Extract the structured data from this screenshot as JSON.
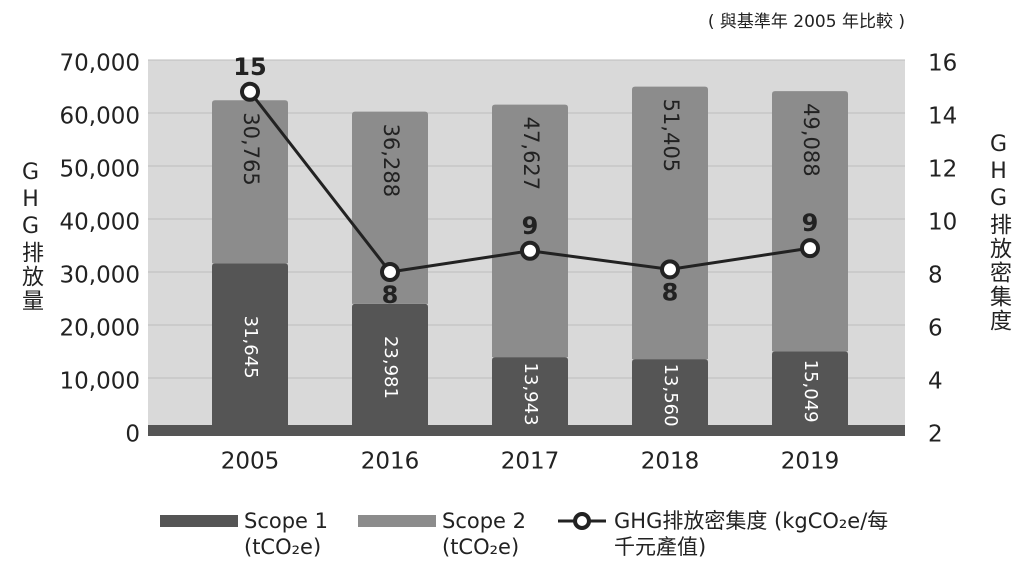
{
  "chart_data": {
    "type": "stacked-bar-line",
    "note": "( 與基準年 2005 年比較 )",
    "ylabel": "GHG排放量",
    "y2label": "GHG排放密集度",
    "categories": [
      "2005",
      "2016",
      "2017",
      "2018",
      "2019"
    ],
    "series": [
      {
        "name": "Scope 1 (tCO₂e)",
        "color": "#555555",
        "values": [
          31645,
          23981,
          13943,
          13560,
          15049
        ],
        "value_labels": [
          "31,645",
          "23,981",
          "13,943",
          "13,560",
          "15,049"
        ]
      },
      {
        "name": "Scope 2 (tCO₂e)",
        "color": "#8c8c8c",
        "values": [
          30765,
          36288,
          47627,
          51405,
          49088
        ],
        "value_labels": [
          "30,765",
          "36,288",
          "47,627",
          "51,405",
          "49,088"
        ]
      },
      {
        "name": "GHG排放密集度 (kgCO₂e/每千元產值)",
        "color": "#222222",
        "axis": "y2",
        "values": [
          14.8,
          8.0,
          8.8,
          8.1,
          8.9
        ],
        "value_labels": [
          "15",
          "8",
          "9",
          "8",
          "9"
        ]
      }
    ],
    "ylim": [
      0,
      70000
    ],
    "yticks": [
      {
        "value": 0,
        "label": "0"
      },
      {
        "value": 10000,
        "label": "10,000"
      },
      {
        "value": 20000,
        "label": "20,000"
      },
      {
        "value": 30000,
        "label": "30,000"
      },
      {
        "value": 40000,
        "label": "40,000"
      },
      {
        "value": 50000,
        "label": "50,000"
      },
      {
        "value": 60000,
        "label": "60,000"
      },
      {
        "value": 70000,
        "label": "70,000"
      }
    ],
    "y2lim": [
      2,
      16
    ],
    "y2ticks": [
      2,
      4,
      6,
      8,
      10,
      12,
      14,
      16
    ],
    "grid": true
  }
}
